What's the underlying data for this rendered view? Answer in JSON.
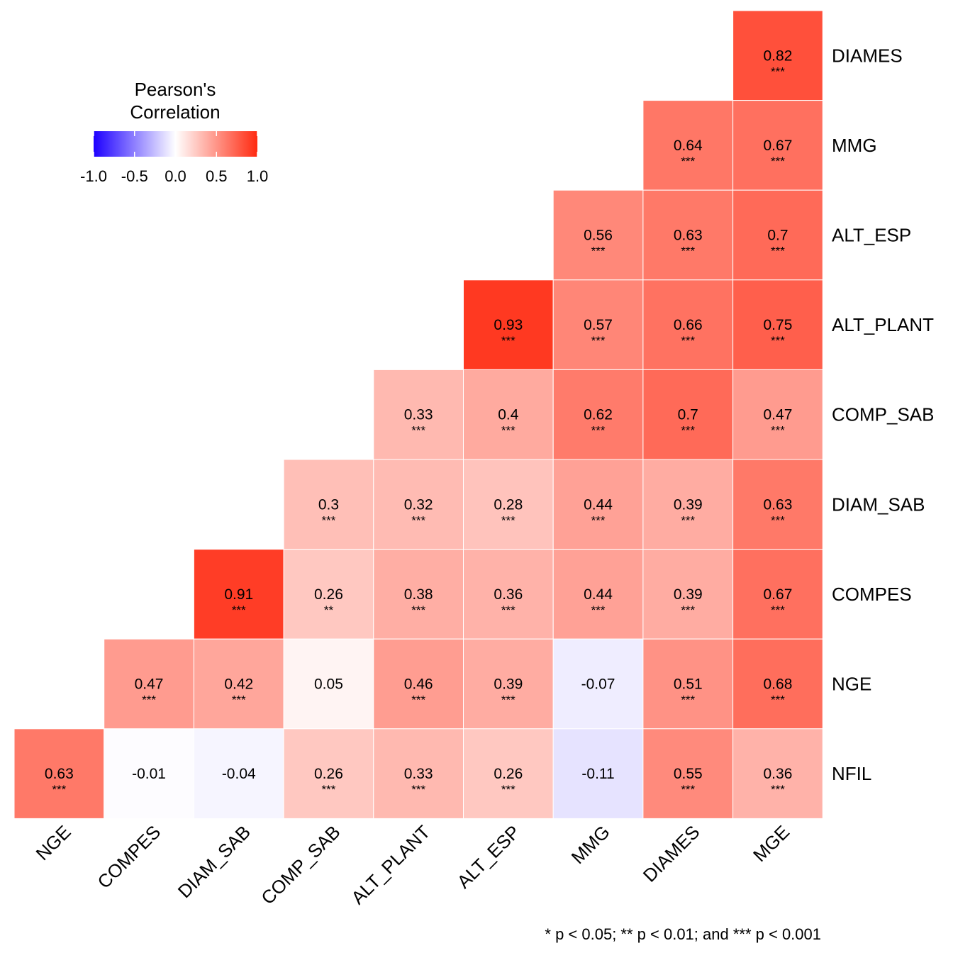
{
  "chart_data": {
    "type": "heatmap",
    "title": "",
    "xlabel": "",
    "ylabel": "",
    "method": "Pearson",
    "x_labels": [
      "NGE",
      "COMPES",
      "DIAM_SAB",
      "COMP_SAB",
      "ALT_PLANT",
      "ALT_ESP",
      "MMG",
      "DIAMES",
      "MGE"
    ],
    "y_labels": [
      "DIAMES",
      "MMG",
      "ALT_ESP",
      "ALT_PLANT",
      "COMP_SAB",
      "DIAM_SAB",
      "COMPES",
      "NGE",
      "NFIL"
    ],
    "cells": [
      {
        "x": "MGE",
        "y": "DIAMES",
        "value": 0.82,
        "label": "0.82",
        "sig": "***"
      },
      {
        "x": "DIAMES",
        "y": "MMG",
        "value": 0.64,
        "label": "0.64",
        "sig": "***"
      },
      {
        "x": "MGE",
        "y": "MMG",
        "value": 0.67,
        "label": "0.67",
        "sig": "***"
      },
      {
        "x": "MMG",
        "y": "ALT_ESP",
        "value": 0.56,
        "label": "0.56",
        "sig": "***"
      },
      {
        "x": "DIAMES",
        "y": "ALT_ESP",
        "value": 0.63,
        "label": "0.63",
        "sig": "***"
      },
      {
        "x": "MGE",
        "y": "ALT_ESP",
        "value": 0.7,
        "label": "0.7",
        "sig": "***"
      },
      {
        "x": "ALT_ESP",
        "y": "ALT_PLANT",
        "value": 0.93,
        "label": "0.93",
        "sig": "***"
      },
      {
        "x": "MMG",
        "y": "ALT_PLANT",
        "value": 0.57,
        "label": "0.57",
        "sig": "***"
      },
      {
        "x": "DIAMES",
        "y": "ALT_PLANT",
        "value": 0.66,
        "label": "0.66",
        "sig": "***"
      },
      {
        "x": "MGE",
        "y": "ALT_PLANT",
        "value": 0.75,
        "label": "0.75",
        "sig": "***"
      },
      {
        "x": "ALT_PLANT",
        "y": "COMP_SAB",
        "value": 0.33,
        "label": "0.33",
        "sig": "***"
      },
      {
        "x": "ALT_ESP",
        "y": "COMP_SAB",
        "value": 0.4,
        "label": "0.4",
        "sig": "***"
      },
      {
        "x": "MMG",
        "y": "COMP_SAB",
        "value": 0.62,
        "label": "0.62",
        "sig": "***"
      },
      {
        "x": "DIAMES",
        "y": "COMP_SAB",
        "value": 0.7,
        "label": "0.7",
        "sig": "***"
      },
      {
        "x": "MGE",
        "y": "COMP_SAB",
        "value": 0.47,
        "label": "0.47",
        "sig": "***"
      },
      {
        "x": "COMP_SAB",
        "y": "DIAM_SAB",
        "value": 0.3,
        "label": "0.3",
        "sig": "***"
      },
      {
        "x": "ALT_PLANT",
        "y": "DIAM_SAB",
        "value": 0.32,
        "label": "0.32",
        "sig": "***"
      },
      {
        "x": "ALT_ESP",
        "y": "DIAM_SAB",
        "value": 0.28,
        "label": "0.28",
        "sig": "***"
      },
      {
        "x": "MMG",
        "y": "DIAM_SAB",
        "value": 0.44,
        "label": "0.44",
        "sig": "***"
      },
      {
        "x": "DIAMES",
        "y": "DIAM_SAB",
        "value": 0.39,
        "label": "0.39",
        "sig": "***"
      },
      {
        "x": "MGE",
        "y": "DIAM_SAB",
        "value": 0.63,
        "label": "0.63",
        "sig": "***"
      },
      {
        "x": "DIAM_SAB",
        "y": "COMPES",
        "value": 0.91,
        "label": "0.91",
        "sig": "***"
      },
      {
        "x": "COMP_SAB",
        "y": "COMPES",
        "value": 0.26,
        "label": "0.26",
        "sig": "**"
      },
      {
        "x": "ALT_PLANT",
        "y": "COMPES",
        "value": 0.38,
        "label": "0.38",
        "sig": "***"
      },
      {
        "x": "ALT_ESP",
        "y": "COMPES",
        "value": 0.36,
        "label": "0.36",
        "sig": "***"
      },
      {
        "x": "MMG",
        "y": "COMPES",
        "value": 0.44,
        "label": "0.44",
        "sig": "***"
      },
      {
        "x": "DIAMES",
        "y": "COMPES",
        "value": 0.39,
        "label": "0.39",
        "sig": "***"
      },
      {
        "x": "MGE",
        "y": "COMPES",
        "value": 0.67,
        "label": "0.67",
        "sig": "***"
      },
      {
        "x": "COMPES",
        "y": "NGE",
        "value": 0.47,
        "label": "0.47",
        "sig": "***"
      },
      {
        "x": "DIAM_SAB",
        "y": "NGE",
        "value": 0.42,
        "label": "0.42",
        "sig": "***"
      },
      {
        "x": "COMP_SAB",
        "y": "NGE",
        "value": 0.05,
        "label": "0.05",
        "sig": ""
      },
      {
        "x": "ALT_PLANT",
        "y": "NGE",
        "value": 0.46,
        "label": "0.46",
        "sig": "***"
      },
      {
        "x": "ALT_ESP",
        "y": "NGE",
        "value": 0.39,
        "label": "0.39",
        "sig": "***"
      },
      {
        "x": "MMG",
        "y": "NGE",
        "value": -0.07,
        "label": "-0.07",
        "sig": ""
      },
      {
        "x": "DIAMES",
        "y": "NGE",
        "value": 0.51,
        "label": "0.51",
        "sig": "***"
      },
      {
        "x": "MGE",
        "y": "NGE",
        "value": 0.68,
        "label": "0.68",
        "sig": "***"
      },
      {
        "x": "NGE",
        "y": "NFIL",
        "value": 0.63,
        "label": "0.63",
        "sig": "***"
      },
      {
        "x": "COMPES",
        "y": "NFIL",
        "value": -0.01,
        "label": "-0.01",
        "sig": ""
      },
      {
        "x": "DIAM_SAB",
        "y": "NFIL",
        "value": -0.04,
        "label": "-0.04",
        "sig": ""
      },
      {
        "x": "COMP_SAB",
        "y": "NFIL",
        "value": 0.26,
        "label": "0.26",
        "sig": "***"
      },
      {
        "x": "ALT_PLANT",
        "y": "NFIL",
        "value": 0.33,
        "label": "0.33",
        "sig": "***"
      },
      {
        "x": "ALT_ESP",
        "y": "NFIL",
        "value": 0.26,
        "label": "0.26",
        "sig": "***"
      },
      {
        "x": "MMG",
        "y": "NFIL",
        "value": -0.11,
        "label": "-0.11",
        "sig": ""
      },
      {
        "x": "DIAMES",
        "y": "NFIL",
        "value": 0.55,
        "label": "0.55",
        "sig": "***"
      },
      {
        "x": "MGE",
        "y": "NFIL",
        "value": 0.36,
        "label": "0.36",
        "sig": "***"
      }
    ],
    "legend": {
      "title_lines": [
        "Pearson's",
        "Correlation"
      ],
      "placement": "top-left",
      "range": [
        -1,
        1
      ],
      "ticks": [
        -1,
        -0.5,
        0,
        0.5,
        1
      ],
      "tick_labels": [
        "-1.0",
        "-0.5",
        "0.0",
        "0.5",
        "1.0"
      ],
      "low_color": "#1d00ff",
      "mid_color": "#ffffff",
      "high_color": "#ff2a10"
    },
    "footnote": "* p < 0.05; ** p < 0.01; and *** p < 0.001",
    "grid": false,
    "cell_border_color": "#ffffff"
  }
}
